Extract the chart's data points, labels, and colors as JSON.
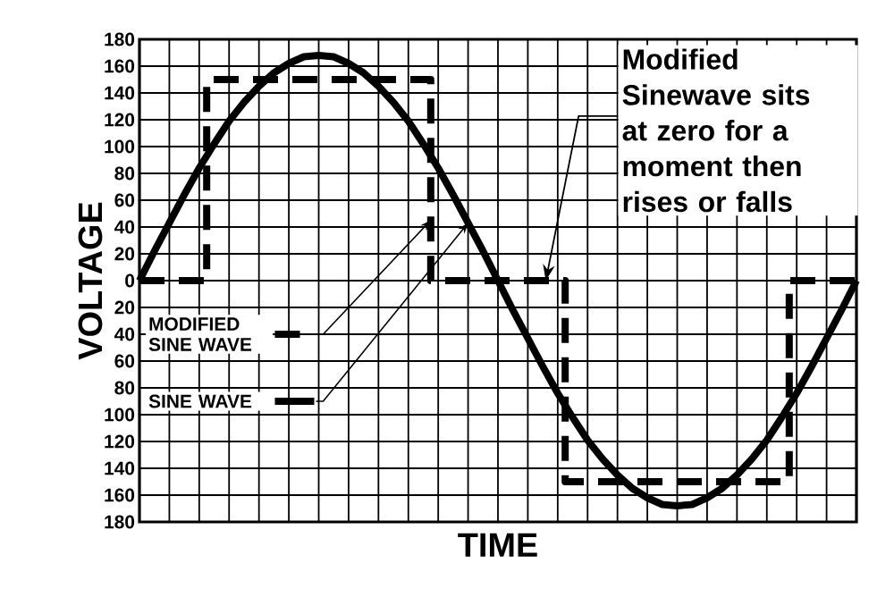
{
  "chart_data": {
    "type": "line",
    "xlabel": "TIME",
    "ylabel": "VOLTAGE",
    "categories": [
      null,
      null,
      null,
      null,
      null,
      null,
      null,
      null,
      null,
      null,
      null,
      null,
      null,
      null,
      null,
      null,
      null,
      null,
      null,
      null,
      null,
      null,
      null,
      null,
      null,
      null,
      null,
      null,
      null,
      null,
      null,
      null,
      null,
      null,
      null,
      null,
      null,
      null,
      null,
      null,
      null,
      null,
      null,
      null,
      null,
      null,
      null,
      null,
      null
    ],
    "series": [
      {
        "name": "MODIFIED SINE WAVE",
        "type": "step",
        "line_style": "dashed",
        "color": "#000000",
        "values": [
          0,
          0,
          0,
          0,
          0,
          150,
          150,
          150,
          150,
          150,
          150,
          150,
          150,
          150,
          150,
          150,
          150,
          150,
          150,
          150,
          0,
          0,
          0,
          0,
          0,
          0,
          0,
          0,
          0,
          -150,
          -150,
          -150,
          -150,
          -150,
          -150,
          -150,
          -150,
          -150,
          -150,
          -150,
          -150,
          -150,
          -150,
          -150,
          0,
          0,
          0,
          0,
          0
        ]
      },
      {
        "name": "SINE WAVE",
        "line_style": "solid",
        "color": "#000000",
        "values": [
          0,
          22,
          43,
          64,
          84,
          102,
          119,
          133,
          145,
          155,
          162,
          167,
          168,
          167,
          162,
          155,
          145,
          133,
          119,
          102,
          84,
          64,
          43,
          22,
          0,
          -22,
          -43,
          -64,
          -84,
          -102,
          -119,
          -133,
          -145,
          -155,
          -162,
          -167,
          -168,
          -167,
          -162,
          -155,
          -145,
          -133,
          -119,
          -102,
          -84,
          -64,
          -43,
          -22,
          0
        ]
      }
    ],
    "ylim": [
      -180,
      180
    ],
    "yticks": [
      {
        "value": -180,
        "label": "180"
      },
      {
        "value": -160,
        "label": "160"
      },
      {
        "value": -140,
        "label": "140"
      },
      {
        "value": -120,
        "label": "120"
      },
      {
        "value": -100,
        "label": "100"
      },
      {
        "value": -80,
        "label": "80"
      },
      {
        "value": -60,
        "label": "60"
      },
      {
        "value": -40,
        "label": "40"
      },
      {
        "value": -20,
        "label": "20"
      },
      0,
      20,
      40,
      60,
      80,
      100,
      120,
      140,
      160,
      180
    ],
    "annotations": [
      "Modified Sinewave sits at zero for a moment then rises or falls"
    ],
    "grid": true,
    "marker": "none",
    "legend": "left"
  }
}
